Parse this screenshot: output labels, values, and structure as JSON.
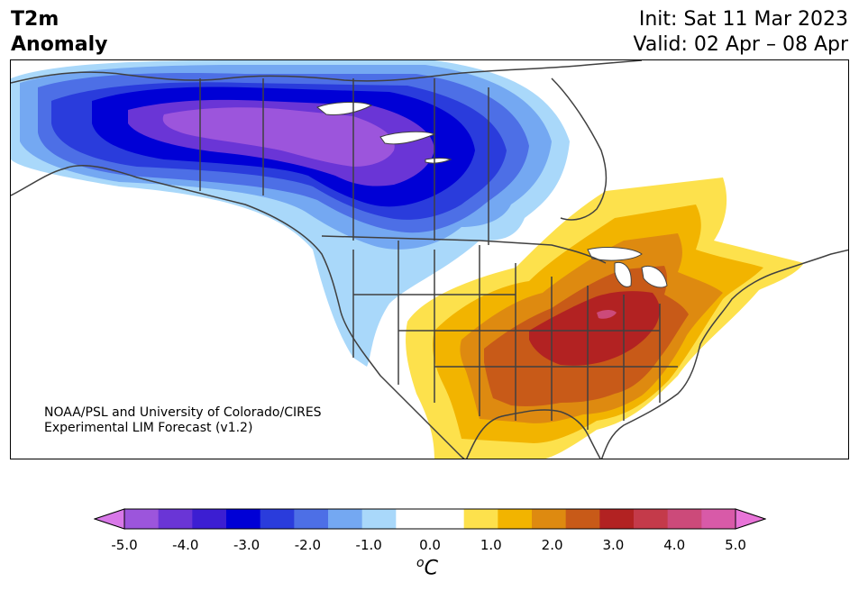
{
  "title": {
    "left_line1": "T2m",
    "left_line2": "Anomaly",
    "init": "Init: Sat 11 Mar 2023",
    "valid": "Valid: 02 Apr – 08 Apr"
  },
  "credit": {
    "line1": "NOAA/PSL and University of Colorado/CIRES",
    "line2": "Experimental LIM Forecast (v1.2)"
  },
  "colorbar": {
    "unit_base": "C",
    "unit_sup": "o",
    "tick_labels": [
      "-5.0",
      "-4.0",
      "-3.0",
      "-2.0",
      "-1.0",
      "0.0",
      "1.0",
      "2.0",
      "3.0",
      "4.0",
      "5.0"
    ],
    "colors": [
      "#d878e8",
      "#9c55dc",
      "#6a35d6",
      "#3c1ed2",
      "#0000d6",
      "#2a3cdc",
      "#4d6fe6",
      "#74a8f2",
      "#a9d8fa",
      "#ffffff",
      "#ffffff",
      "#fde14c",
      "#f2b400",
      "#de8a10",
      "#c85a18",
      "#b22222",
      "#c43a4a",
      "#cc4a7a",
      "#d85aa8",
      "#e874d8"
    ]
  },
  "map": {
    "region": "North America",
    "colors": {
      "cold5": "#9c55dc",
      "cold4": "#6a35d6",
      "cold3": "#0000d6",
      "cold2": "#2a3cdc",
      "cold1": "#4d6fe6",
      "cool": "#74a8f2",
      "light": "#a9d8fa",
      "warm1": "#fde14c",
      "warm2": "#f2b400",
      "warm3": "#de8a10",
      "warm4": "#c85a18",
      "hot": "#b22222",
      "hottest": "#cc4a7a",
      "coast": "#404040"
    }
  }
}
